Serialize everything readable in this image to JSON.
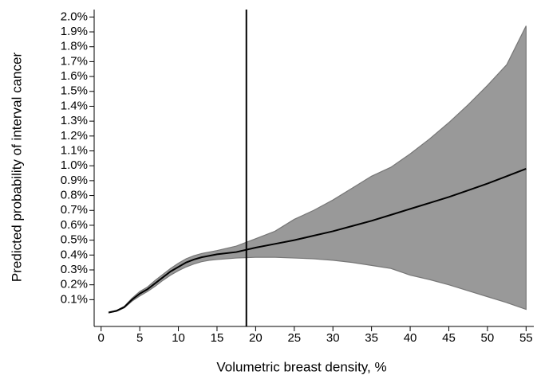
{
  "chart_data": {
    "type": "band-line",
    "x_label": "Volumetric breast density, %",
    "y_label": "Predicted probability of interval cancer",
    "x": [
      1,
      2,
      3,
      4,
      5,
      6,
      7,
      8,
      9,
      10,
      11,
      12,
      13,
      14,
      15,
      17.5,
      20,
      22.5,
      25,
      27.5,
      30,
      32.5,
      35,
      37.5,
      40,
      42.5,
      45,
      47.5,
      50,
      52.5,
      55
    ],
    "series": [
      {
        "color": "#000000",
        "values": [
          0.014,
          0.025,
          0.05,
          0.1,
          0.14,
          0.17,
          0.21,
          0.25,
          0.29,
          0.32,
          0.35,
          0.37,
          0.385,
          0.395,
          0.405,
          0.42,
          0.45,
          0.475,
          0.5,
          0.53,
          0.56,
          0.595,
          0.63,
          0.67,
          0.71,
          0.75,
          0.79,
          0.835,
          0.88,
          0.93,
          0.98
        ]
      }
    ],
    "band": {
      "color": "#999999",
      "edge": "#777777",
      "lower": [
        0.011,
        0.022,
        0.045,
        0.09,
        0.125,
        0.155,
        0.19,
        0.23,
        0.265,
        0.295,
        0.32,
        0.34,
        0.355,
        0.365,
        0.37,
        0.38,
        0.385,
        0.385,
        0.38,
        0.375,
        0.365,
        0.35,
        0.33,
        0.31,
        0.265,
        0.235,
        0.2,
        0.16,
        0.12,
        0.08,
        0.035
      ],
      "upper": [
        0.017,
        0.028,
        0.055,
        0.11,
        0.155,
        0.185,
        0.23,
        0.27,
        0.31,
        0.345,
        0.375,
        0.395,
        0.41,
        0.42,
        0.43,
        0.46,
        0.51,
        0.56,
        0.64,
        0.7,
        0.77,
        0.85,
        0.93,
        0.99,
        1.08,
        1.18,
        1.29,
        1.41,
        1.54,
        1.68,
        1.94
      ]
    },
    "vline": 18.8,
    "xlim": [
      -0.9,
      56
    ],
    "ylim": [
      -0.08,
      2.05
    ],
    "xticks": [
      0,
      5,
      10,
      15,
      20,
      25,
      30,
      35,
      40,
      45,
      50,
      55
    ],
    "yticks": [
      {
        "value": 0.1,
        "label": "0.1%"
      },
      {
        "value": 0.2,
        "label": "0.2%"
      },
      {
        "value": 0.3,
        "label": "0.3%"
      },
      {
        "value": 0.4,
        "label": "0.4%"
      },
      {
        "value": 0.5,
        "label": "0.5%"
      },
      {
        "value": 0.6,
        "label": "0.6%"
      },
      {
        "value": 0.7,
        "label": "0.7%"
      },
      {
        "value": 0.8,
        "label": "0.8%"
      },
      {
        "value": 0.9,
        "label": "0.9%"
      },
      {
        "value": 1.0,
        "label": "1.0%"
      },
      {
        "value": 1.1,
        "label": "1.1%"
      },
      {
        "value": 1.2,
        "label": "1.2%"
      },
      {
        "value": 1.3,
        "label": "1.3%"
      },
      {
        "value": 1.4,
        "label": "1.4%"
      },
      {
        "value": 1.5,
        "label": "1.5%"
      },
      {
        "value": 1.6,
        "label": "1.6%"
      },
      {
        "value": 1.7,
        "label": "1.7%"
      },
      {
        "value": 1.8,
        "label": "1.8%"
      },
      {
        "value": 1.9,
        "label": "1.9%"
      },
      {
        "value": 2.0,
        "label": "2.0%"
      }
    ]
  }
}
